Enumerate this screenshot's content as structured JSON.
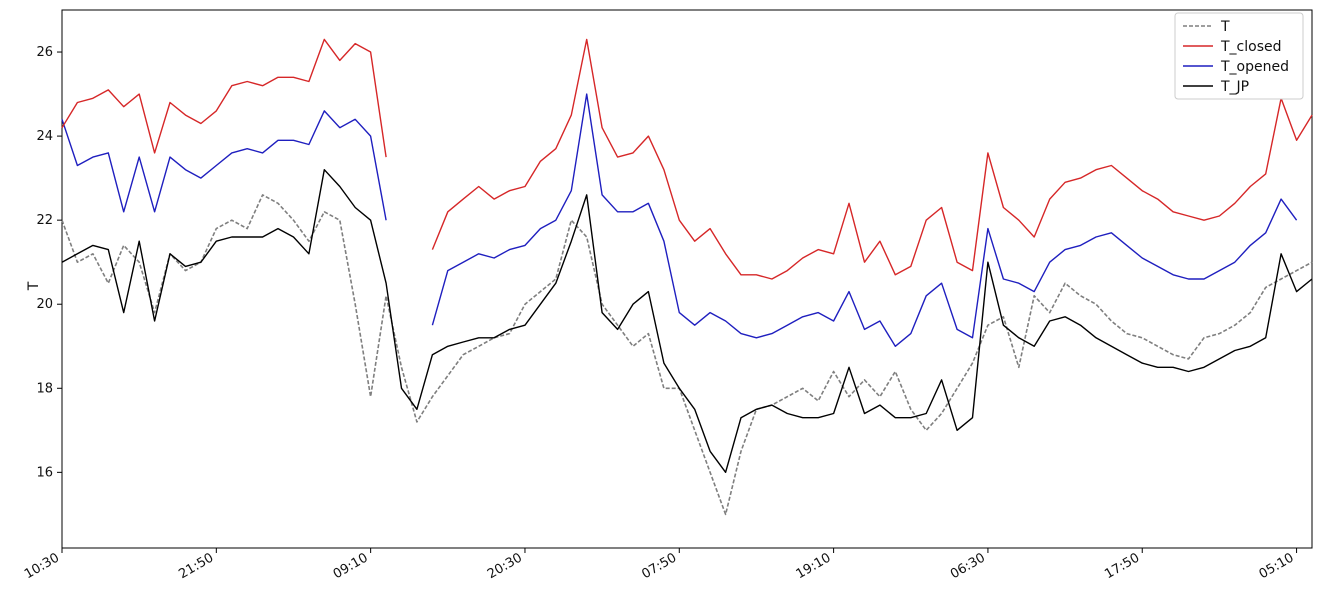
{
  "chart_data": {
    "type": "line",
    "title": "",
    "xlabel": "",
    "ylabel": "T",
    "ylim": [
      14.2,
      27.0
    ],
    "y_ticks": [
      16,
      18,
      20,
      22,
      24,
      26
    ],
    "x_tick_labels": [
      "10:30",
      "21:50",
      "09:10",
      "20:30",
      "07:50",
      "19:10",
      "06:30",
      "17:50",
      "05:10"
    ],
    "x_tick_index": [
      0,
      10,
      20,
      30,
      40,
      50,
      60,
      70,
      80
    ],
    "grid": false,
    "legend_position": "top-right",
    "colors": {
      "T": "#7f7f7f",
      "T_closed": "#d62728",
      "T_opened": "#1f1fbf",
      "T_JP": "#000000"
    },
    "series": [
      {
        "name": "T",
        "style": "dashed",
        "values": [
          22.0,
          21.0,
          21.2,
          20.5,
          21.4,
          21.0,
          19.8,
          21.2,
          20.8,
          21.0,
          21.8,
          22.0,
          21.8,
          22.6,
          22.4,
          22.0,
          21.5,
          22.2,
          22.0,
          20.0,
          17.8,
          20.2,
          18.5,
          17.2,
          17.8,
          18.3,
          18.8,
          19.0,
          19.2,
          19.3,
          20.0,
          20.3,
          20.6,
          22.0,
          21.6,
          20.0,
          19.5,
          19.0,
          19.3,
          18.0,
          18.0,
          17.0,
          16.0,
          15.0,
          16.5,
          17.5,
          17.6,
          17.8,
          18.0,
          17.7,
          18.4,
          17.8,
          18.2,
          17.8,
          18.4,
          17.5,
          17.0,
          17.4,
          18.0,
          18.6,
          19.5,
          19.7,
          18.5,
          20.2,
          19.8,
          20.5,
          20.2,
          20.0,
          19.6,
          19.3,
          19.2,
          19.0,
          18.8,
          18.7,
          19.2,
          19.3,
          19.5,
          19.8,
          20.4,
          20.6,
          20.8,
          21.0
        ]
      },
      {
        "name": "T_closed",
        "style": "solid",
        "values": [
          24.2,
          24.8,
          24.9,
          25.1,
          24.7,
          25.0,
          23.6,
          24.8,
          24.5,
          24.3,
          24.6,
          25.2,
          25.3,
          25.2,
          25.4,
          25.4,
          25.3,
          26.3,
          25.8,
          26.2,
          26.0,
          23.5,
          null,
          null,
          21.3,
          22.2,
          22.5,
          22.8,
          22.5,
          22.7,
          22.8,
          23.4,
          23.7,
          24.5,
          26.3,
          24.2,
          23.5,
          23.6,
          24.0,
          23.2,
          22.0,
          21.5,
          21.8,
          21.2,
          20.7,
          20.7,
          20.6,
          20.8,
          21.1,
          21.3,
          21.2,
          22.4,
          21.0,
          21.5,
          20.7,
          20.9,
          22.0,
          22.3,
          21.0,
          20.8,
          23.6,
          22.3,
          22.0,
          21.6,
          22.5,
          22.9,
          23.0,
          23.2,
          23.3,
          23.0,
          22.7,
          22.5,
          22.2,
          22.1,
          22.0,
          22.1,
          22.4,
          22.8,
          23.1,
          24.9,
          23.9,
          24.5
        ]
      },
      {
        "name": "T_opened",
        "style": "solid",
        "values": [
          24.4,
          23.3,
          23.5,
          23.6,
          22.2,
          23.5,
          22.2,
          23.5,
          23.2,
          23.0,
          23.3,
          23.6,
          23.7,
          23.6,
          23.9,
          23.9,
          23.8,
          24.6,
          24.2,
          24.4,
          24.0,
          22.0,
          null,
          null,
          19.5,
          20.8,
          21.0,
          21.2,
          21.1,
          21.3,
          21.4,
          21.8,
          22.0,
          22.7,
          25.0,
          22.6,
          22.2,
          22.2,
          22.4,
          21.5,
          19.8,
          19.5,
          19.8,
          19.6,
          19.3,
          19.2,
          19.3,
          19.5,
          19.7,
          19.8,
          19.6,
          20.3,
          19.4,
          19.6,
          19.0,
          19.3,
          20.2,
          20.5,
          19.4,
          19.2,
          21.8,
          20.6,
          20.5,
          20.3,
          21.0,
          21.3,
          21.4,
          21.6,
          21.7,
          21.4,
          21.1,
          20.9,
          20.7,
          20.6,
          20.6,
          20.8,
          21.0,
          21.4,
          21.7,
          22.5,
          22.0,
          null
        ]
      },
      {
        "name": "T_JP",
        "style": "solid",
        "values": [
          21.0,
          21.2,
          21.4,
          21.3,
          19.8,
          21.5,
          19.6,
          21.2,
          20.9,
          21.0,
          21.5,
          21.6,
          21.6,
          21.6,
          21.8,
          21.6,
          21.2,
          23.2,
          22.8,
          22.3,
          22.0,
          20.5,
          18.0,
          17.5,
          18.8,
          19.0,
          19.1,
          19.2,
          19.2,
          19.4,
          19.5,
          20.0,
          20.5,
          21.5,
          22.6,
          19.8,
          19.4,
          20.0,
          20.3,
          18.6,
          18.0,
          17.5,
          16.5,
          16.0,
          17.3,
          17.5,
          17.6,
          17.4,
          17.3,
          17.3,
          17.4,
          18.5,
          17.4,
          17.6,
          17.3,
          17.3,
          17.4,
          18.2,
          17.0,
          17.3,
          21.0,
          19.5,
          19.2,
          19.0,
          19.6,
          19.7,
          19.5,
          19.2,
          19.0,
          18.8,
          18.6,
          18.5,
          18.5,
          18.4,
          18.5,
          18.7,
          18.9,
          19.0,
          19.2,
          21.2,
          20.3,
          20.6
        ]
      }
    ]
  }
}
